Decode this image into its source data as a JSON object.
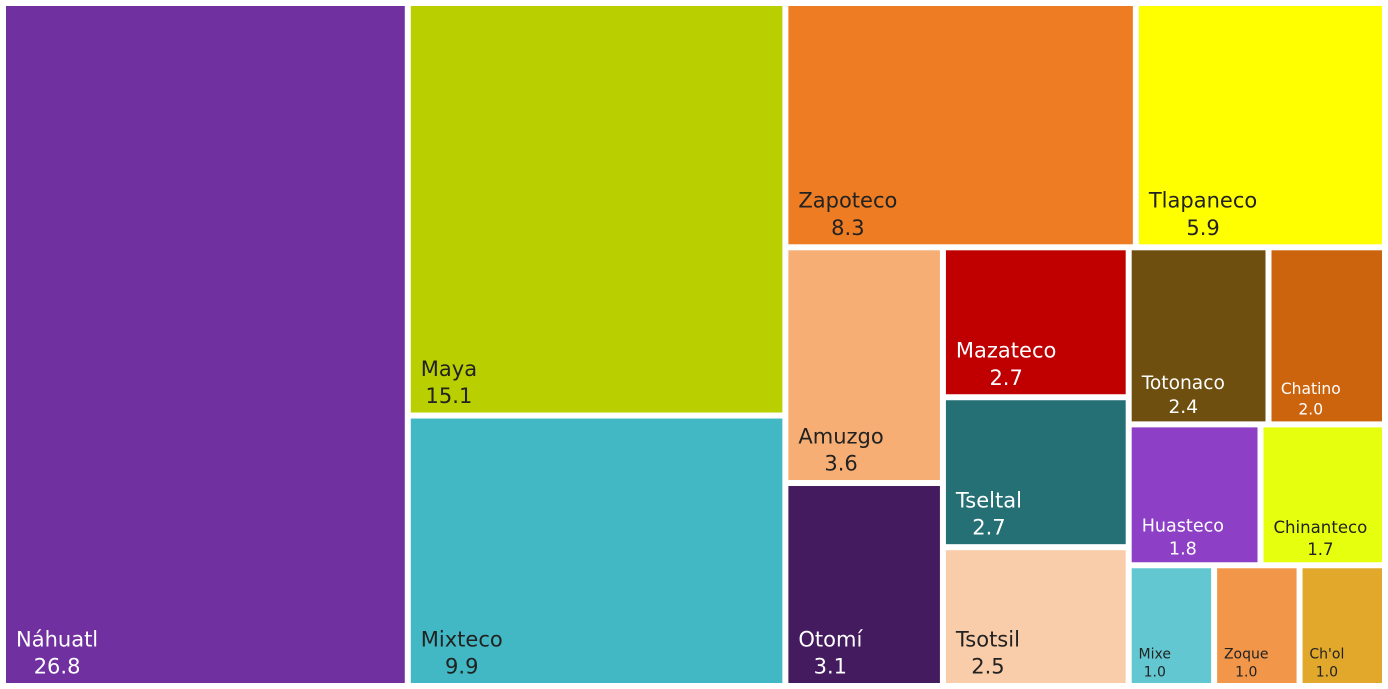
{
  "chart_data": {
    "type": "treemap",
    "categories": [
      "Náhuatl",
      "Maya",
      "Mixteco",
      "Zapoteco",
      "Tlapaneco",
      "Amuzgo",
      "Otomí",
      "Mazateco",
      "Tseltal",
      "Tsotsil",
      "Totonaco",
      "Chatino",
      "Huasteco",
      "Chinanteco",
      "Mixe",
      "Zoque",
      "Ch'ol"
    ],
    "values": [
      26.8,
      15.1,
      9.9,
      8.3,
      5.9,
      3.6,
      3.1,
      2.7,
      2.7,
      2.5,
      2.4,
      2.0,
      1.8,
      1.7,
      1.0,
      1.0,
      1.0
    ],
    "value_labels": [
      "26.8",
      "15.1",
      "9.9",
      "8.3",
      "5.9",
      "3.6",
      "3.1",
      "2.7",
      "2.7",
      "2.5",
      "2.4",
      "2.0",
      "1.8",
      "1.7",
      "1.0",
      "1.0",
      "1.0"
    ],
    "colors": [
      "#7030a0",
      "#bacf00",
      "#41b8c4",
      "#ee7c22",
      "#ffff00",
      "#f6ae74",
      "#441b5e",
      "#c00000",
      "#247075",
      "#f9cdaa",
      "#6e4f10",
      "#cc640e",
      "#8d3fc6",
      "#e6ff0f",
      "#62c7d0",
      "#f2974a",
      "#e1a82b"
    ]
  }
}
